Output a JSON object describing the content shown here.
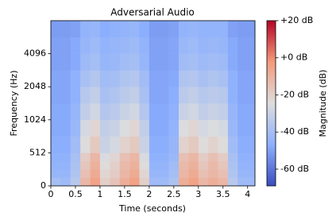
{
  "chart_data": {
    "type": "heatmap",
    "title": "Adversarial Audio",
    "x_label": "Time (seconds)",
    "y_label": "Frequency (Hz)",
    "colorbar_label": "Magnitude (dB)",
    "yscale": "symlog",
    "linthresh": 512,
    "base": 2,
    "colormap": "coolwarm",
    "xlim": [
      0,
      4.15
    ],
    "xticks": [
      0,
      0.5,
      1,
      1.5,
      2,
      2.5,
      3,
      3.5,
      4
    ],
    "ylim": [
      0,
      8192
    ],
    "yticks": [
      0,
      512,
      1024,
      2048,
      4096
    ],
    "clim": [
      -69,
      20
    ],
    "cticks": [
      {
        "value": 20,
        "label": "+20 dB"
      },
      {
        "value": 0,
        "label": "+0 dB"
      },
      {
        "value": -20,
        "label": "-20 dB"
      },
      {
        "value": -40,
        "label": "-40 dB"
      },
      {
        "value": -60,
        "label": "-60 dB"
      }
    ],
    "x_bins": [
      0,
      0.2,
      0.4,
      0.6,
      0.8,
      1.0,
      1.2,
      1.4,
      1.6,
      1.8,
      2.0,
      2.2,
      2.4,
      2.6,
      2.8,
      3.0,
      3.2,
      3.4,
      3.6,
      3.8,
      4.0,
      4.15
    ],
    "y_bins": [
      0,
      128,
      256,
      384,
      512,
      724,
      1024,
      1448,
      2048,
      2896,
      4096,
      5793,
      8192
    ],
    "values": [
      [
        -40,
        -42,
        -35,
        -12,
        -5,
        -20,
        -16,
        -9,
        -5,
        -20,
        -42,
        -42,
        -38,
        -9,
        -5,
        -12,
        -9,
        -12,
        -35,
        -42,
        -42
      ],
      [
        -44,
        -44,
        -37,
        -15,
        -8,
        -22,
        -19,
        -12,
        -8,
        -22,
        -44,
        -44,
        -40,
        -12,
        -8,
        -15,
        -12,
        -15,
        -37,
        -44,
        -44
      ],
      [
        -45,
        -45,
        -38,
        -17,
        -10,
        -24,
        -20,
        -13,
        -10,
        -24,
        -45,
        -45,
        -41,
        -13,
        -10,
        -17,
        -13,
        -17,
        -38,
        -45,
        -45
      ],
      [
        -46,
        -46,
        -39,
        -19,
        -12,
        -26,
        -22,
        -15,
        -12,
        -26,
        -46,
        -46,
        -43,
        -15,
        -12,
        -19,
        -15,
        -19,
        -39,
        -46,
        -46
      ],
      [
        -47,
        -47,
        -41,
        -24,
        -18,
        -30,
        -27,
        -21,
        -18,
        -30,
        -47,
        -47,
        -44,
        -21,
        -18,
        -24,
        -21,
        -24,
        -41,
        -47,
        -47
      ],
      [
        -48,
        -48,
        -43,
        -27,
        -22,
        -32,
        -30,
        -25,
        -22,
        -32,
        -48,
        -48,
        -45,
        -25,
        -22,
        -27,
        -25,
        -27,
        -43,
        -48,
        -48
      ],
      [
        -48,
        -48,
        -44,
        -32,
        -28,
        -36,
        -34,
        -30,
        -28,
        -36,
        -48,
        -48,
        -46,
        -30,
        -28,
        -32,
        -30,
        -32,
        -44,
        -48,
        -48
      ],
      [
        -49,
        -49,
        -46,
        -35,
        -32,
        -39,
        -37,
        -34,
        -32,
        -39,
        -49,
        -49,
        -47,
        -34,
        -32,
        -35,
        -34,
        -35,
        -46,
        -49,
        -49
      ],
      [
        -49,
        -49,
        -46,
        -39,
        -36,
        -41,
        -40,
        -37,
        -36,
        -41,
        -49,
        -49,
        -48,
        -37,
        -36,
        -39,
        -37,
        -39,
        -46,
        -49,
        -49
      ],
      [
        -50,
        -50,
        -48,
        -42,
        -40,
        -44,
        -43,
        -41,
        -40,
        -44,
        -50,
        -50,
        -49,
        -41,
        -40,
        -42,
        -41,
        -42,
        -48,
        -50,
        -50
      ],
      [
        -50,
        -50,
        -48,
        -44,
        -42,
        -45,
        -44,
        -43,
        -42,
        -45,
        -50,
        -50,
        -49,
        -43,
        -42,
        -44,
        -43,
        -44,
        -48,
        -50,
        -50
      ],
      [
        -51,
        -51,
        -50,
        -45,
        -44,
        -47,
        -46,
        -45,
        -44,
        -47,
        -51,
        -51,
        -50,
        -45,
        -44,
        -45,
        -45,
        -45,
        -50,
        -51,
        -51
      ]
    ]
  }
}
